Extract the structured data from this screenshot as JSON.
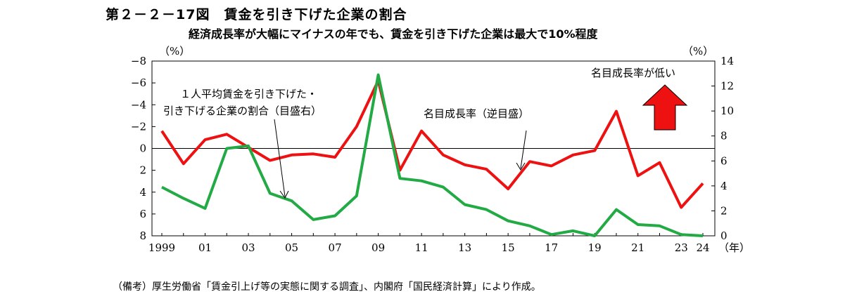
{
  "title": "第２－２－17図　賃金を引き下げた企業の割合",
  "subtitle": "経済成長率が大幅にマイナスの年でも、賃金を引き下げた企業は最大で10%程度",
  "note": "（備考）厚生労働省「賃金引上げ等の実態に関する調査」、内閣府「国民経済計算」により作成。",
  "chart_data": {
    "type": "line",
    "y_left_label": "（%）",
    "y_right_label": "（%）",
    "x_unit_label": "（年）",
    "x": [
      1999,
      2000,
      2001,
      2002,
      2003,
      2004,
      2005,
      2006,
      2007,
      2008,
      2009,
      2010,
      2011,
      2012,
      2013,
      2014,
      2015,
      2016,
      2017,
      2018,
      2019,
      2020,
      2021,
      2022,
      2023,
      2024
    ],
    "x_tick_labels": [
      {
        "x": 1999,
        "label": "1999"
      },
      {
        "x": 2001,
        "label": "01"
      },
      {
        "x": 2003,
        "label": "03"
      },
      {
        "x": 2005,
        "label": "05"
      },
      {
        "x": 2007,
        "label": "07"
      },
      {
        "x": 2009,
        "label": "09"
      },
      {
        "x": 2011,
        "label": "11"
      },
      {
        "x": 2013,
        "label": "13"
      },
      {
        "x": 2015,
        "label": "15"
      },
      {
        "x": 2017,
        "label": "17"
      },
      {
        "x": 2019,
        "label": "19"
      },
      {
        "x": 2021,
        "label": "21"
      },
      {
        "x": 2023,
        "label": "23"
      },
      {
        "x": 2024,
        "label": "24"
      }
    ],
    "y_left_ticks": [
      {
        "v": -8,
        "label": "−8"
      },
      {
        "v": -6,
        "label": "−6"
      },
      {
        "v": -4,
        "label": "−4"
      },
      {
        "v": -2,
        "label": "−2"
      },
      {
        "v": 0,
        "label": "0"
      },
      {
        "v": 2,
        "label": "2"
      },
      {
        "v": 4,
        "label": "4"
      },
      {
        "v": 6,
        "label": "6"
      },
      {
        "v": 8,
        "label": "8"
      }
    ],
    "y_right_ticks": [
      {
        "v": 0,
        "label": "0"
      },
      {
        "v": 2,
        "label": "2"
      },
      {
        "v": 4,
        "label": "4"
      },
      {
        "v": 6,
        "label": "6"
      },
      {
        "v": 8,
        "label": "8"
      },
      {
        "v": 10,
        "label": "10"
      },
      {
        "v": 12,
        "label": "12"
      },
      {
        "v": 14,
        "label": "14"
      }
    ],
    "y_left_range": [
      -8,
      8
    ],
    "y_left_inverted": true,
    "y_right_range": [
      0,
      14
    ],
    "series": [
      {
        "name": "名目成長率（逆目盛）",
        "axis": "left",
        "color": "#ee1111",
        "values": [
          -1.6,
          1.4,
          -0.8,
          -1.3,
          -0.1,
          1.1,
          0.6,
          0.5,
          0.8,
          -2.0,
          -6.2,
          2.0,
          -1.6,
          0.6,
          1.5,
          1.9,
          3.7,
          1.2,
          1.6,
          0.6,
          0.2,
          -3.4,
          2.5,
          1.3,
          5.4,
          3.2
        ]
      },
      {
        "name": "１人平均賃金を引き下げた・引き下げる企業の割合（目盛右）",
        "axis": "right",
        "color": "#22aa44",
        "values": [
          3.9,
          3.0,
          2.2,
          7.0,
          7.2,
          3.4,
          2.8,
          1.3,
          1.6,
          3.2,
          12.9,
          4.6,
          4.4,
          3.9,
          2.5,
          2.1,
          1.2,
          0.8,
          0.1,
          0.4,
          0.0,
          2.1,
          0.9,
          0.8,
          0.1,
          0.0
        ]
      }
    ],
    "annotations": {
      "green_label_line1": "１人平均賃金を引き下げた・",
      "green_label_line2": "引き下げる企業の割合（目盛右）",
      "red_label": "名目成長率（逆目盛）",
      "arrow_label": "名目成長率が低い"
    },
    "grid": false,
    "arrow_color": "#ee1111"
  }
}
